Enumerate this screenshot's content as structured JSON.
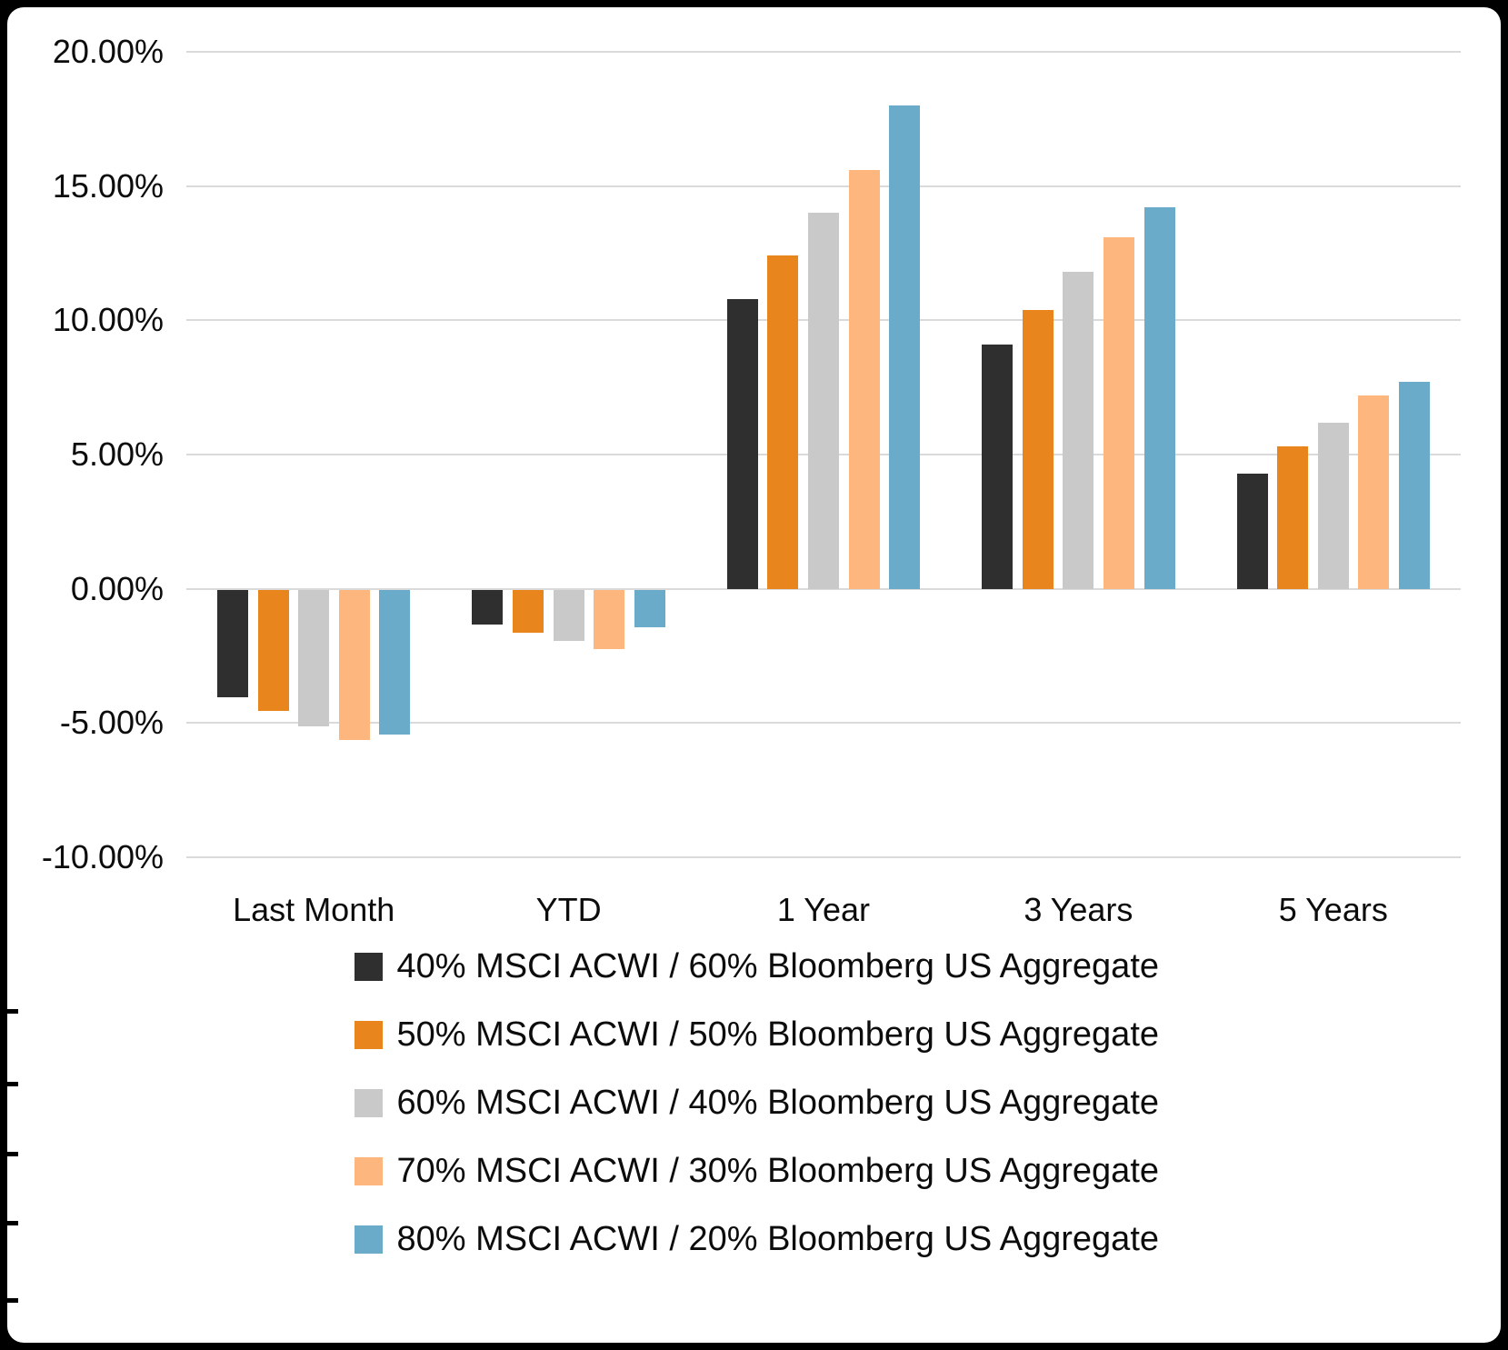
{
  "chart_data": {
    "type": "bar",
    "title": "",
    "xlabel": "",
    "ylabel": "",
    "categories": [
      "Last Month",
      "YTD",
      "1 Year",
      "3 Years",
      "5 Years"
    ],
    "series": [
      {
        "name": "40% MSCI ACWI / 60% Bloomberg US Aggregate",
        "color": "#2F2F2F",
        "values": [
          -4.0,
          -1.3,
          10.8,
          9.1,
          4.3
        ]
      },
      {
        "name": "50% MSCI ACWI / 50% Bloomberg US Aggregate",
        "color": "#E8861D",
        "values": [
          -4.5,
          -1.6,
          12.4,
          10.4,
          5.3
        ]
      },
      {
        "name": "60% MSCI ACWI / 40% Bloomberg US Aggregate",
        "color": "#C9C9C9",
        "values": [
          -5.1,
          -1.9,
          14.0,
          11.8,
          6.2
        ]
      },
      {
        "name": "70% MSCI ACWI / 30% Bloomberg US Aggregate",
        "color": "#FDB67E",
        "values": [
          -5.6,
          -2.2,
          15.6,
          13.1,
          7.2
        ]
      },
      {
        "name": "80% MSCI ACWI / 20% Bloomberg US Aggregate",
        "color": "#69ABC8",
        "values": [
          -5.4,
          -1.4,
          18.0,
          14.2,
          7.7
        ]
      }
    ],
    "ylim": [
      -10,
      20
    ],
    "ytick_step": 5,
    "ytick_labels": [
      "20.00%",
      "15.00%",
      "10.00%",
      "5.00%",
      "0.00%",
      "-5.00%",
      "-10.00%"
    ],
    "grid": true,
    "gridline_color": "#DADADA",
    "legend_position": "bottom"
  },
  "frame": {
    "border_color": "#000000",
    "background": "#ffffff"
  }
}
